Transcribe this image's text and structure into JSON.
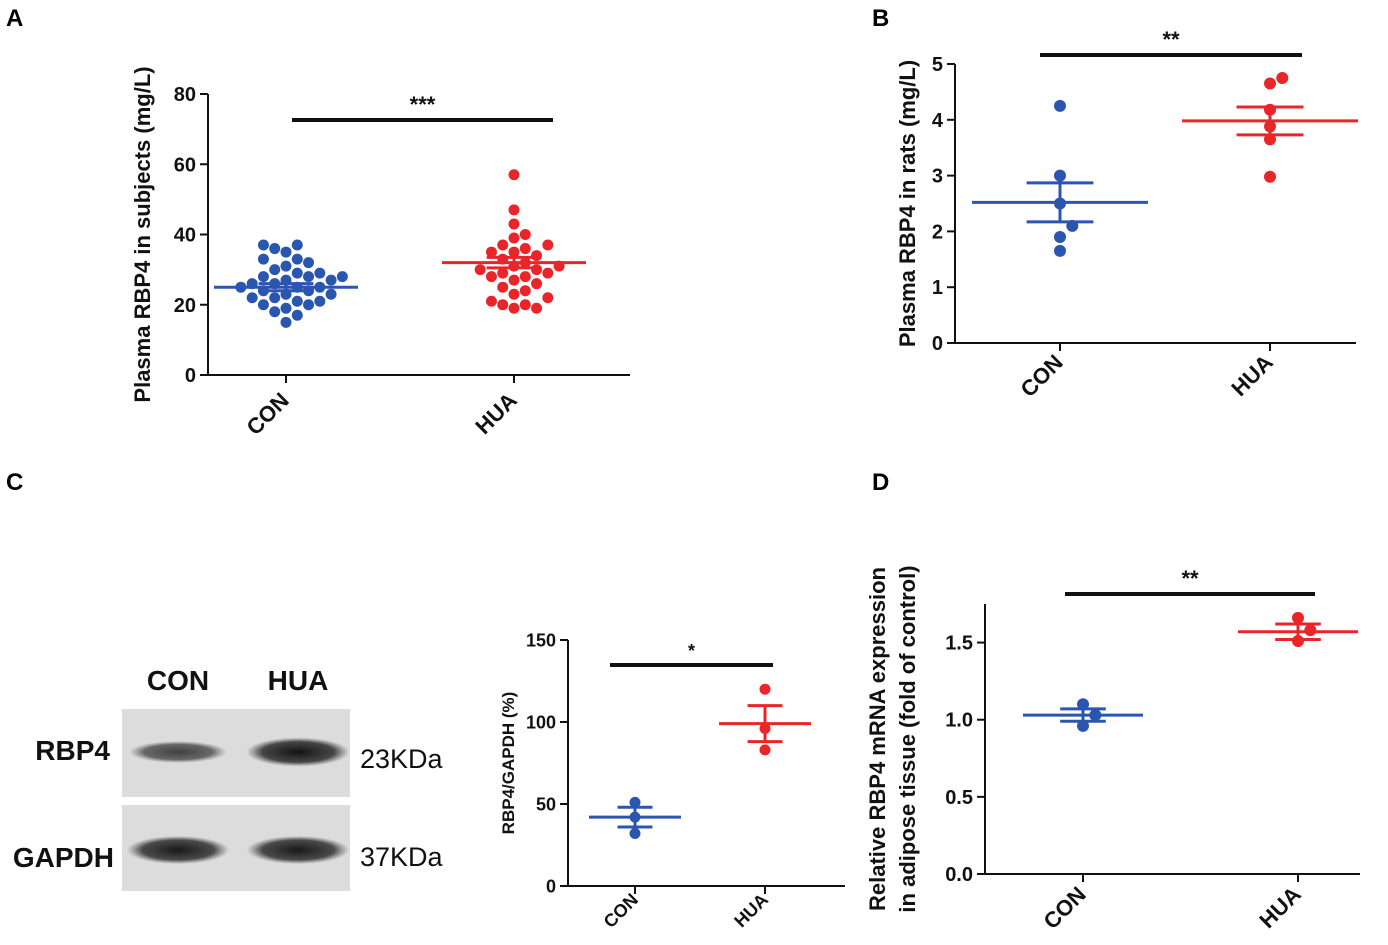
{
  "colors": {
    "con": "#2a56b0",
    "hua": "#e8262a",
    "axis": "#111111"
  },
  "blot": {
    "lanes": [
      "CON",
      "HUA"
    ],
    "rows": [
      {
        "label": "RBP4",
        "kda": "23KDa",
        "intensity": [
          0.55,
          0.95
        ]
      },
      {
        "label": "GAPDH",
        "kda": "37KDa",
        "intensity": [
          0.9,
          0.9
        ]
      }
    ]
  },
  "chart_data": [
    {
      "panel": "A",
      "type": "scatter",
      "ylabel": "Plasma RBP4 in subjects (mg/L)",
      "categories": [
        "CON",
        "HUA"
      ],
      "yticks": [
        "0",
        "20",
        "40",
        "60",
        "80"
      ],
      "ylim": [
        0,
        80
      ],
      "significance": "***",
      "series": [
        {
          "points": [
            15,
            17,
            18,
            19,
            20,
            20,
            21,
            21,
            22,
            22,
            23,
            23,
            24,
            24,
            25,
            25,
            25,
            26,
            26,
            27,
            27,
            28,
            28,
            28,
            29,
            29,
            30,
            31,
            32,
            33,
            33,
            35,
            36,
            37,
            37
          ],
          "mean": 25,
          "sem": 1
        },
        {
          "points": [
            19,
            19,
            20,
            20,
            21,
            22,
            23,
            24,
            25,
            26,
            27,
            28,
            28,
            29,
            29,
            30,
            30,
            31,
            31,
            32,
            33,
            34,
            35,
            35,
            36,
            37,
            37,
            39,
            40,
            43,
            47,
            57
          ],
          "mean": 32,
          "sem": 1.5
        }
      ],
      "grid": false
    },
    {
      "panel": "B",
      "type": "scatter",
      "ylabel": "Plasma RBP4 in rats (mg/L)",
      "categories": [
        "CON",
        "HUA"
      ],
      "yticks": [
        "0",
        "1",
        "2",
        "3",
        "4",
        "5"
      ],
      "ylim": [
        0,
        5
      ],
      "significance": "**",
      "series": [
        {
          "points": [
            1.65,
            1.9,
            2.1,
            2.5,
            3.0,
            4.25
          ],
          "mean": 2.52,
          "sem": 0.35
        },
        {
          "points": [
            2.98,
            3.65,
            3.88,
            4.18,
            4.65,
            4.75
          ],
          "mean": 3.98,
          "sem": 0.25
        }
      ],
      "grid": false
    },
    {
      "panel": "C",
      "type": "scatter",
      "ylabel": "RBP4/GAPDH (%)",
      "categories": [
        "CON",
        "HUA"
      ],
      "yticks": [
        "0",
        "50",
        "100",
        "150"
      ],
      "ylim": [
        0,
        150
      ],
      "significance": "*",
      "series": [
        {
          "points": [
            32,
            42,
            51
          ],
          "mean": 42,
          "sem": 6
        },
        {
          "points": [
            83,
            96,
            120
          ],
          "mean": 99,
          "sem": 11
        }
      ],
      "grid": false
    },
    {
      "panel": "D",
      "type": "scatter",
      "ylabel": [
        "Relative RBP4 mRNA expression",
        "in adipose tissue (fold of control)"
      ],
      "categories": [
        "CON",
        "HUA"
      ],
      "yticks": [
        "0.0",
        "0.5",
        "1.0",
        "1.5"
      ],
      "ylim": [
        0,
        1.75
      ],
      "significance": "**",
      "series": [
        {
          "points": [
            0.96,
            1.03,
            1.1
          ],
          "mean": 1.03,
          "sem": 0.04
        },
        {
          "points": [
            1.51,
            1.58,
            1.66
          ],
          "mean": 1.57,
          "sem": 0.05
        }
      ],
      "grid": false
    }
  ]
}
